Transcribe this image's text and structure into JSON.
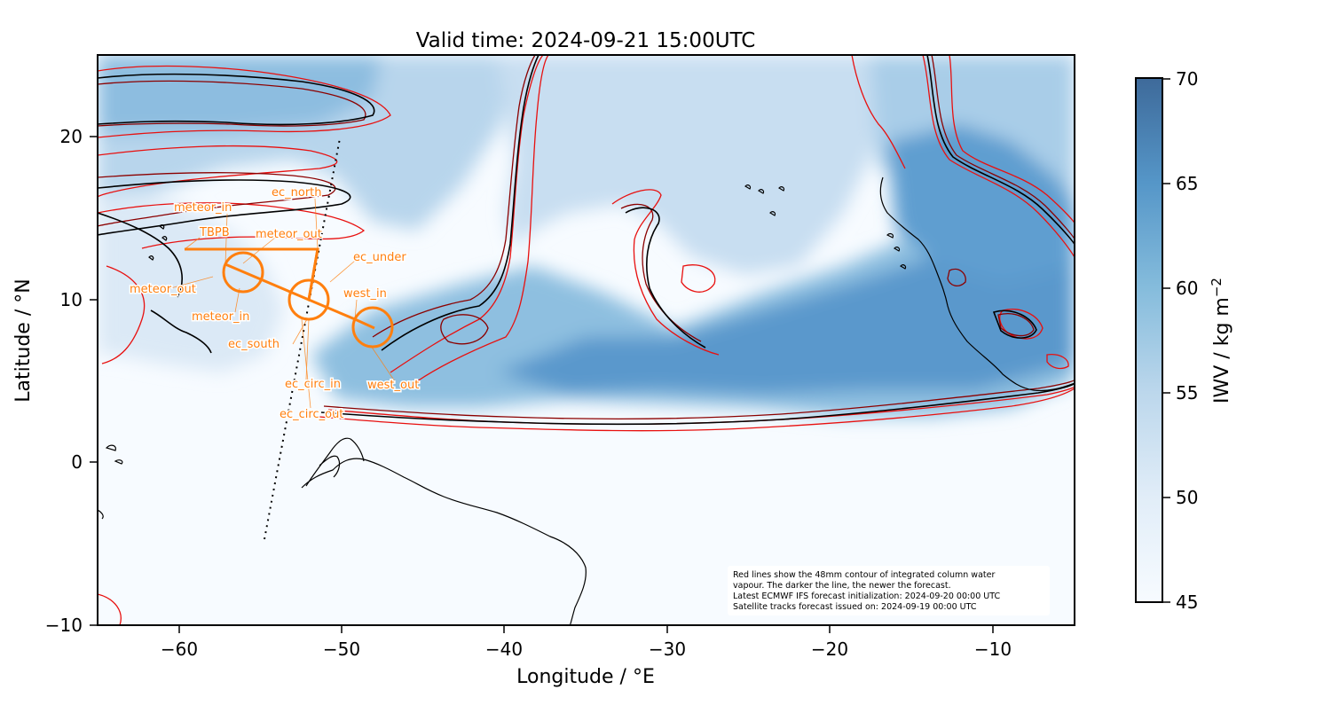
{
  "title": "Valid time: 2024-09-21 15:00UTC",
  "xlabel": "Longitude / °E",
  "ylabel": "Latitude / °N",
  "x_ticks": [
    "−60",
    "−50",
    "−40",
    "−30",
    "−20",
    "−10"
  ],
  "y_ticks": [
    "20",
    "10",
    "0",
    "−10"
  ],
  "colorbar": {
    "label": "IWV / kg m",
    "label_superscript": "−2",
    "ticks": [
      "70",
      "65",
      "60",
      "55",
      "50",
      "45"
    ],
    "range": [
      45,
      70
    ],
    "color_low": "#f7fbff",
    "color_high": "#3e6a9a"
  },
  "flight_labels": [
    "ec_north",
    "meteor_in",
    "TBPB",
    "meteor_out",
    "ec_under",
    "meteor_out",
    "west_in",
    "meteor_in",
    "ec_south",
    "ec_circ_in",
    "west_out",
    "ec_circ_out"
  ],
  "note_lines": [
    "Red lines show the 48mm contour of integrated column water",
    "vapour. The darker the line, the newer the forecast.",
    "Latest ECMWF IFS forecast initialization: 2024-09-20 00:00 UTC",
    "Satellite tracks forecast issued on: 2024-09-19 00:00 UTC"
  ],
  "colors": {
    "flight_track": "#ff7f0e",
    "contour_old": "#e8100f",
    "contour_mid": "#8b0000",
    "contour_new": "#000000",
    "coastline": "#000000"
  },
  "chart_data": {
    "type": "heatmap",
    "title": "Valid time: 2024-09-21 15:00UTC",
    "xlabel": "Longitude / °E",
    "ylabel": "Latitude / °N",
    "xlim": [
      -65,
      -5
    ],
    "ylim": [
      -10,
      25
    ],
    "x_ticks": [
      -60,
      -50,
      -40,
      -30,
      -20,
      -10
    ],
    "y_ticks": [
      -10,
      0,
      10,
      20
    ],
    "colorbar_label": "IWV / kg m−2",
    "colorbar_range": [
      45,
      70
    ],
    "colormap": "Blues",
    "contour_level_mm": 48,
    "satellite_track": [
      [
        -55,
        -5
      ],
      [
        -50.8,
        20
      ]
    ],
    "flight_waypoints": [
      {
        "name": "TBPB",
        "lon": -59.5,
        "lat": 13.1
      },
      {
        "name": "ec_north",
        "lon": -51.5,
        "lat": 13.1
      },
      {
        "name": "ec_south",
        "lon": -52.0,
        "lat": 10.0
      },
      {
        "name": "west_in",
        "lon": -49.0,
        "lat": 9.0
      },
      {
        "name": "west_out",
        "lon": -47.5,
        "lat": 8.2
      }
    ],
    "flight_circles": [
      {
        "lon": -56.2,
        "lat": 11.8,
        "radius_deg": 1.2
      },
      {
        "lon": -52.0,
        "lat": 10.0,
        "radius_deg": 1.2
      },
      {
        "lon": -47.7,
        "lat": 8.2,
        "radius_deg": 1.2
      }
    ]
  }
}
